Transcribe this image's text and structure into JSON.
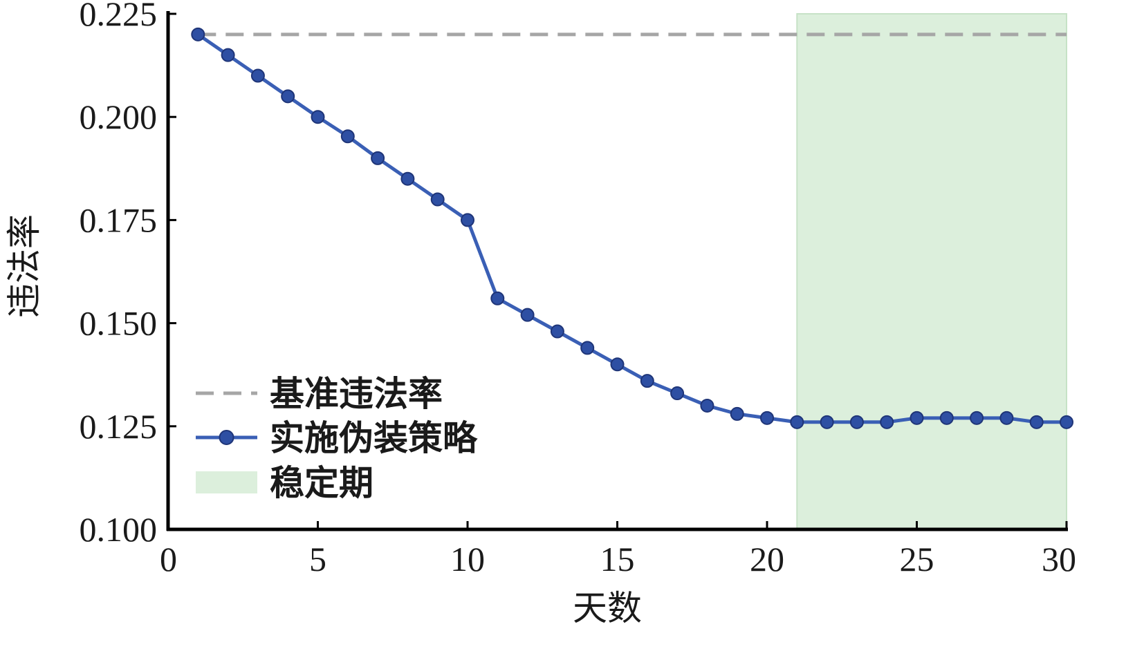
{
  "chart_data": {
    "type": "line",
    "xlabel": "天数",
    "ylabel": "违法率",
    "xlim": [
      0,
      30
    ],
    "ylim": [
      0.1,
      0.225
    ],
    "xticks": [
      0,
      5,
      10,
      15,
      20,
      25,
      30
    ],
    "xtick_labels": [
      "0",
      "5",
      "10",
      "15",
      "20",
      "25",
      "30"
    ],
    "yticks": [
      0.1,
      0.125,
      0.15,
      0.175,
      0.2,
      0.225
    ],
    "ytick_labels": [
      "0.100",
      "0.125",
      "0.150",
      "0.175",
      "0.200",
      "0.225"
    ],
    "grid": false,
    "legend_position": "lower-left",
    "baseline": {
      "name": "基准违法率",
      "value": 0.22,
      "style": "dashed",
      "color": "#a6a6a6"
    },
    "series": [
      {
        "name": "实施伪装策略",
        "color": "#3a5fb5",
        "marker_color": "#2e4fa3",
        "x": [
          1,
          2,
          3,
          4,
          5,
          6,
          7,
          8,
          9,
          10,
          11,
          12,
          13,
          14,
          15,
          16,
          17,
          18,
          19,
          20,
          21,
          22,
          23,
          24,
          25,
          26,
          27,
          28,
          29,
          30
        ],
        "y": [
          0.22,
          0.215,
          0.21,
          0.205,
          0.2,
          0.1953,
          0.19,
          0.185,
          0.18,
          0.175,
          0.156,
          0.152,
          0.148,
          0.144,
          0.14,
          0.136,
          0.133,
          0.13,
          0.128,
          0.127,
          0.126,
          0.126,
          0.126,
          0.126,
          0.127,
          0.127,
          0.127,
          0.127,
          0.126,
          0.126
        ]
      }
    ],
    "shaded_region": {
      "name": "稳定期",
      "x_start": 21,
      "x_end": 30,
      "color": "#dcefdc"
    }
  }
}
